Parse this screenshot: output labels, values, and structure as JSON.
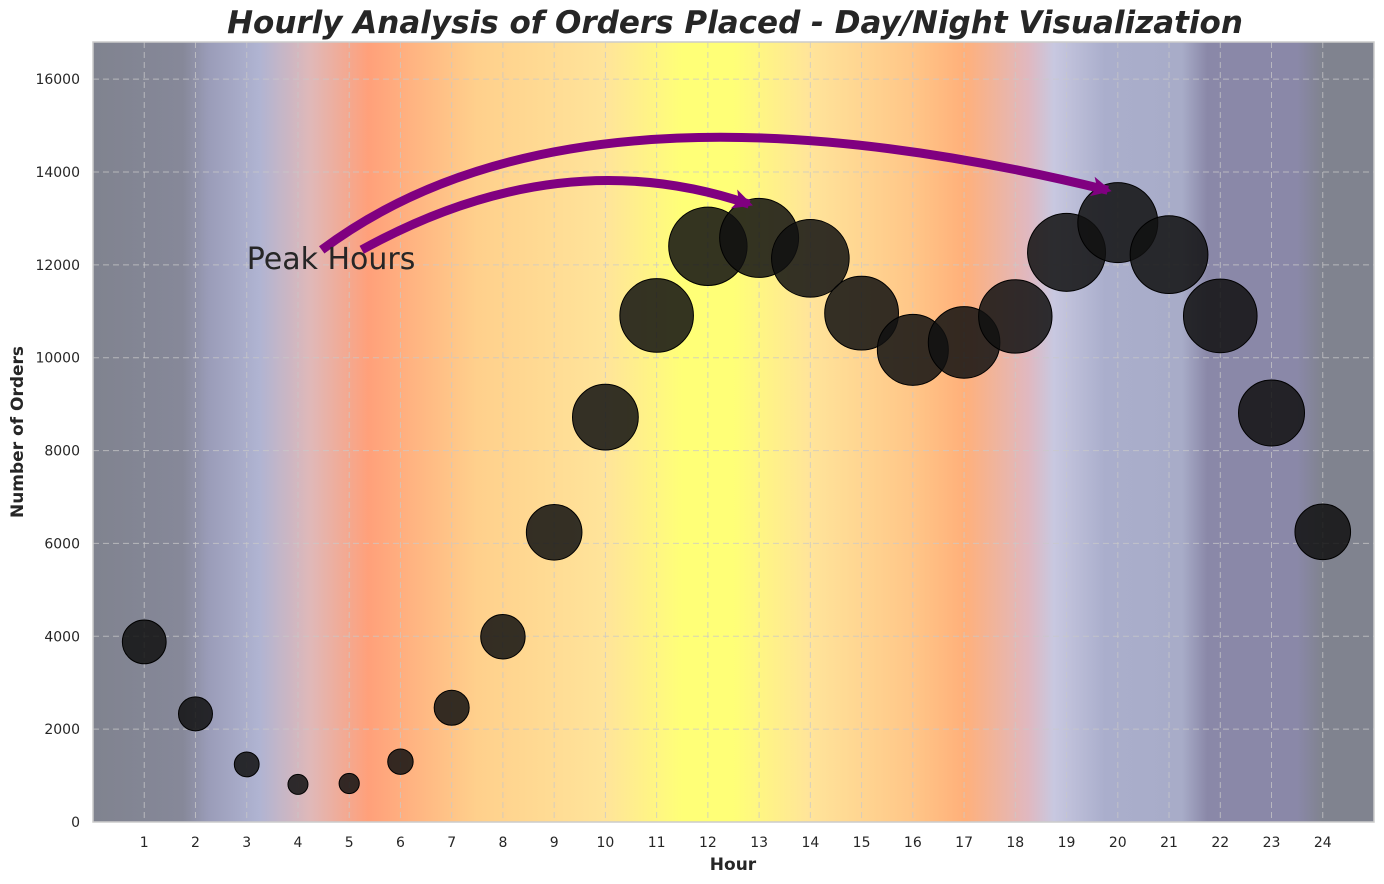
{
  "chart_data": {
    "type": "scatter",
    "title": "Hourly Analysis of Orders Placed - Day/Night Visualization",
    "xlabel": "Hour",
    "ylabel": "Number of Orders",
    "x": [
      1,
      2,
      3,
      4,
      5,
      6,
      7,
      8,
      9,
      10,
      11,
      12,
      13,
      14,
      15,
      16,
      17,
      18,
      19,
      20,
      21,
      22,
      23,
      24
    ],
    "values": [
      3880,
      2330,
      1240,
      810,
      830,
      1300,
      2460,
      3990,
      6240,
      8720,
      10910,
      12400,
      12580,
      12140,
      10960,
      10170,
      10330,
      10890,
      12270,
      12910,
      12220,
      10900,
      8810,
      6250
    ],
    "xlim": [
      0,
      25
    ],
    "ylim": [
      0,
      16800
    ],
    "xticks": [
      1,
      2,
      3,
      4,
      5,
      6,
      7,
      8,
      9,
      10,
      11,
      12,
      13,
      14,
      15,
      16,
      17,
      18,
      19,
      20,
      21,
      22,
      23,
      24
    ],
    "yticks": [
      0,
      2000,
      4000,
      6000,
      8000,
      10000,
      12000,
      14000,
      16000
    ],
    "grid": true,
    "marker_size_encodes": "values",
    "background": "day/night color gradient by hour",
    "annotation": {
      "text": "Peak Hours",
      "x": 3,
      "y": 12000,
      "arrow_targets": [
        [
          13,
          13200
        ],
        [
          20,
          13500
        ]
      ]
    },
    "colors": {
      "arrow": "#800080",
      "marker": "#111111",
      "gradient": [
        "#80838f",
        "#9a9cb8",
        "#b0b4d2",
        "#ffa07a",
        "#ffdd99",
        "#ffff77",
        "#ffdd99",
        "#ffb07a",
        "#c8c8e0",
        "#a8acc8",
        "#8a88a8",
        "#80838f"
      ]
    }
  }
}
